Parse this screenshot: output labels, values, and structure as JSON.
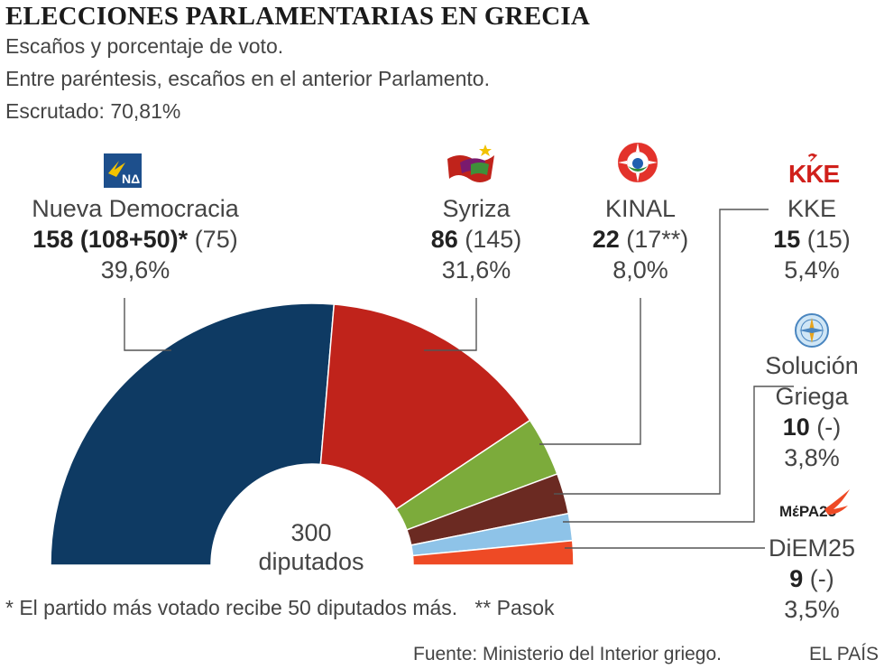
{
  "title": "ELECCIONES PARLAMENTARIAS EN GRECIA",
  "subtitle": [
    "Escaños y porcentaje de voto.",
    "Entre paréntesis, escaños en el anterior Parlamento.",
    "Escrutado: 70,81%"
  ],
  "center": {
    "total": "300",
    "label": "diputados"
  },
  "footnote": "* El partido más votado recibe 50 diputados más.   ** Pasok",
  "source": "Fuente: Ministerio del Interior griego.",
  "brand": "EL PAÍS",
  "chart_data": {
    "type": "pie",
    "variant": "half-donut (hemicycle)",
    "title": "ELECCIONES PARLAMENTARIAS EN GRECIA",
    "total_seats": 300,
    "series": [
      {
        "name": "Nueva Democracia",
        "seats": 158,
        "seats_text": "158 (108+50)*",
        "previous_text": "(75)",
        "vote_pct": "39,6%",
        "color": "#0e3a63",
        "icon": "nd-logo-icon"
      },
      {
        "name": "Syriza",
        "seats": 86,
        "seats_text": "86",
        "previous_text": "(145)",
        "vote_pct": "31,6%",
        "color": "#c0231b",
        "icon": "syriza-flag-icon"
      },
      {
        "name": "KINAL",
        "seats": 22,
        "seats_text": "22",
        "previous_text": "(17**)",
        "vote_pct": "8,0%",
        "color": "#7cab3b",
        "icon": "kinal-logo-icon"
      },
      {
        "name": "KKE",
        "seats": 15,
        "seats_text": "15",
        "previous_text": "(15)",
        "vote_pct": "5,4%",
        "color": "#6b2a22",
        "icon": "kke-logo-icon"
      },
      {
        "name_lines": [
          "Solución",
          "Griega"
        ],
        "name": "Solución Griega",
        "seats": 10,
        "seats_text": "10",
        "previous_text": "(-)",
        "vote_pct": "3,8%",
        "color": "#8ec3e8",
        "icon": "compass-logo-icon"
      },
      {
        "name": "DiEM25",
        "seats": 9,
        "seats_text": "9",
        "previous_text": "(-)",
        "vote_pct": "3,5%",
        "color": "#ee4a25",
        "icon": "mera25-logo-icon",
        "logo_text": "MέPA25"
      }
    ]
  }
}
